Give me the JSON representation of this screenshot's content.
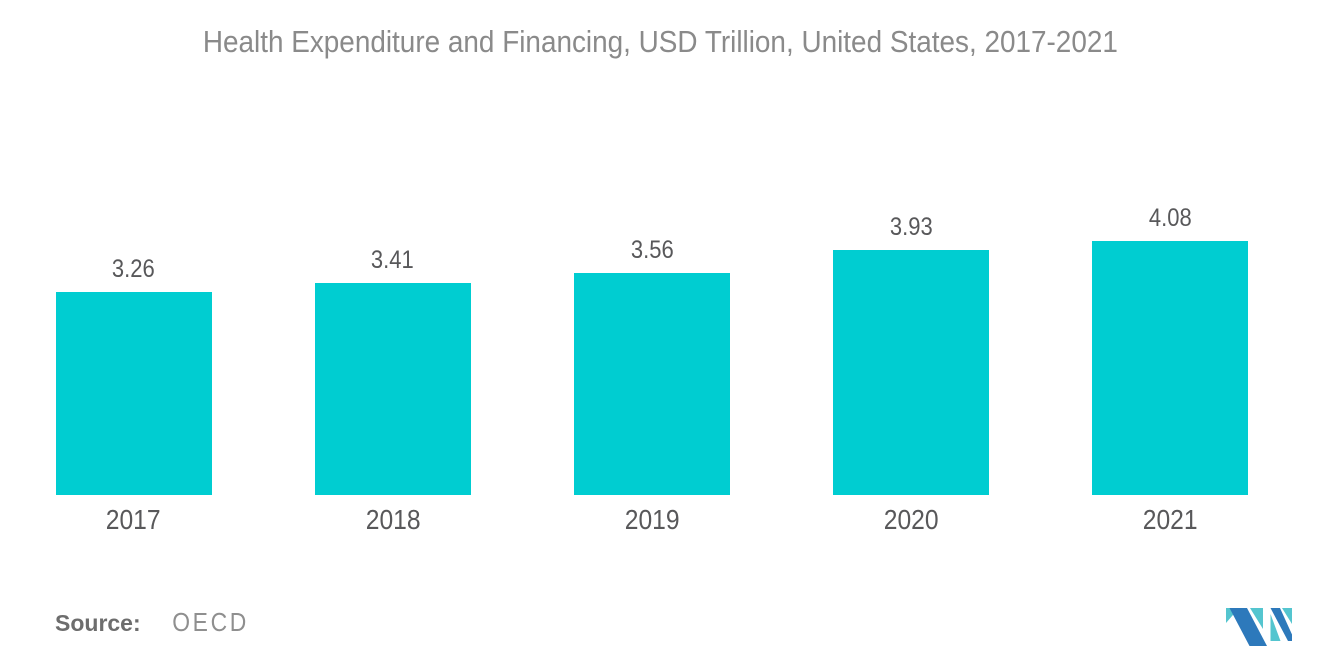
{
  "title": "Health Expenditure and Financing, USD Trillion, United States, 2017-2021",
  "source": {
    "label": "Source:",
    "value": "OECD"
  },
  "colors": {
    "bar": "#00CDD1",
    "title_text": "#8A8A8A",
    "label_text": "#58585A",
    "source_label": "#6D6D6D",
    "source_value": "#8F8F8F",
    "logo_blue": "#2D79BB",
    "logo_teal": "#54C5CF"
  },
  "chart_data": {
    "type": "bar",
    "categories": [
      "2017",
      "2018",
      "2019",
      "2020",
      "2021"
    ],
    "values": [
      3.26,
      3.41,
      3.56,
      3.93,
      4.08
    ],
    "title": "Health Expenditure and Financing, USD Trillion, United States, 2017-2021",
    "xlabel": "",
    "ylabel": "",
    "ylim": [
      0,
      4.08
    ],
    "grid": false,
    "legend": false,
    "data_labels": "above each bar, two decimals",
    "bar_baseline_zero": true
  },
  "logo": {
    "name": "mordor-intelligence-logo"
  }
}
